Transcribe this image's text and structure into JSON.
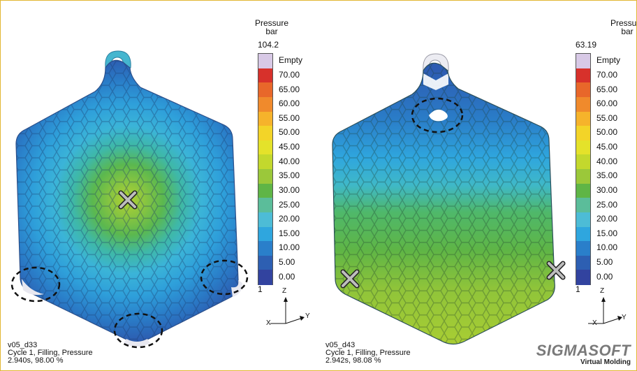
{
  "legend": {
    "title_line1": "Pressure",
    "title_line2": "bar",
    "empty_label": "Empty",
    "ticks": [
      "70.00",
      "65.00",
      "60.00",
      "55.00",
      "50.00",
      "45.00",
      "40.00",
      "35.00",
      "30.00",
      "25.00",
      "20.00",
      "15.00",
      "10.00",
      "5.00",
      "0.00"
    ],
    "min_label": "1",
    "colors": [
      "#d8c9e6",
      "#d7312b",
      "#e8672a",
      "#f08a2c",
      "#f6b32b",
      "#f3d428",
      "#e4e22a",
      "#c3d82d",
      "#9bc83a",
      "#5fb546",
      "#5bbd9a",
      "#4dbcd6",
      "#2fa6de",
      "#2a7fca",
      "#2d5fb2",
      "#32439f"
    ]
  },
  "left": {
    "max_value": "104.2",
    "info_line1": "v05_d33",
    "info_line2": "Cycle 1, Filling, Pressure",
    "info_line3": "2.940s, 98.00 %"
  },
  "right": {
    "max_value": "63.19",
    "info_line1": "v05_d43",
    "info_line2": "Cycle 1, Filling, Pressure",
    "info_line3": "2.942s, 98.08 %"
  },
  "axes": {
    "z": "Z",
    "y": "Y",
    "x": "X"
  },
  "logo": {
    "main": "SIGMASOFT",
    "sub": "Virtual Molding"
  }
}
